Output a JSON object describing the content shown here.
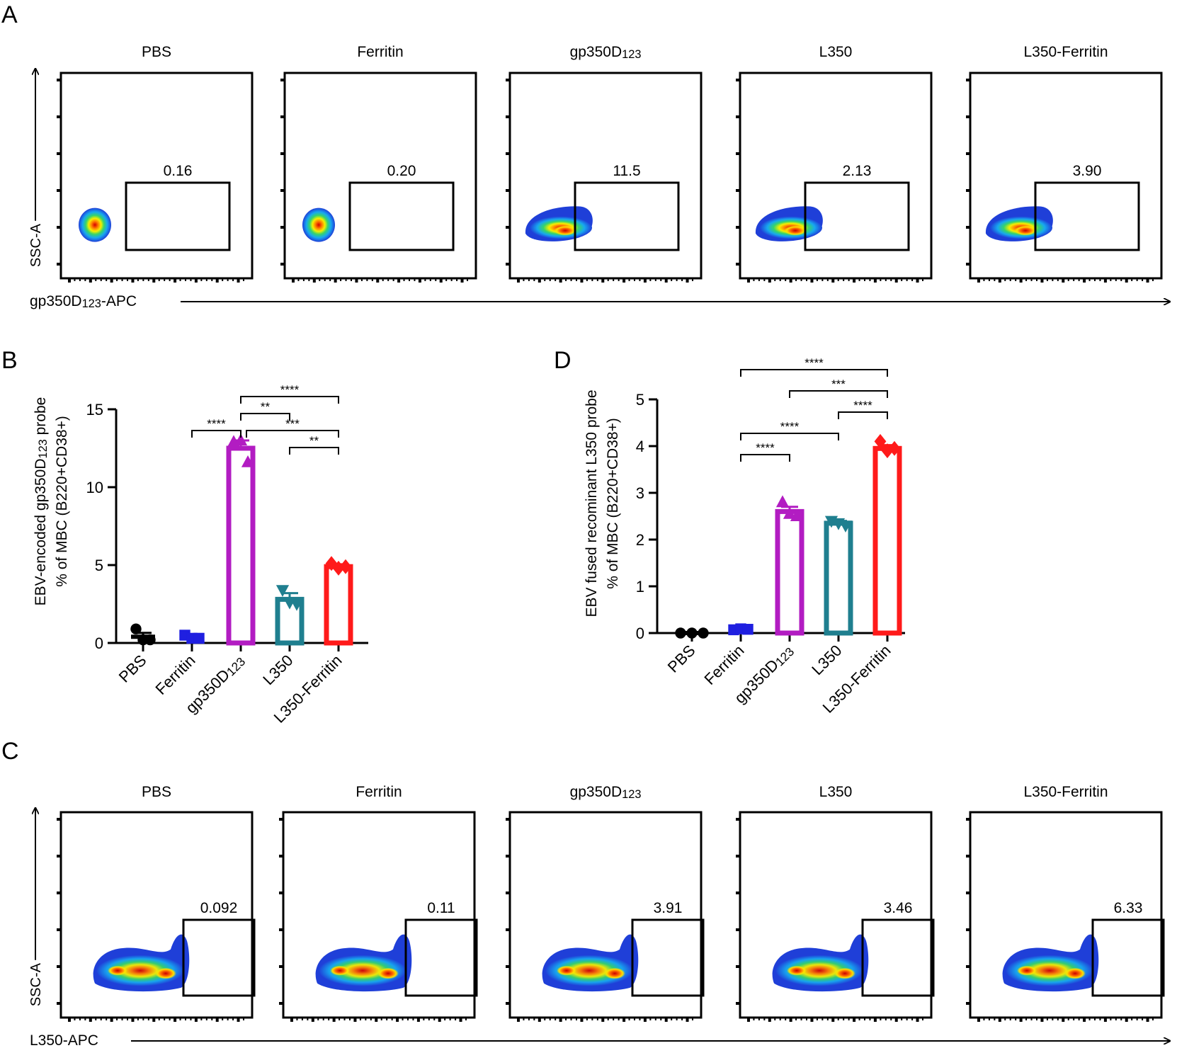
{
  "panel_letters": {
    "a": "A",
    "b": "B",
    "c": "C",
    "d": "D"
  },
  "colors": {
    "PBS": "#000000",
    "Ferritin": "#1f1fe0",
    "gp350D123": "#b21cc2",
    "L350": "#1f7f8f",
    "L350-Ferritin": "#ff1a1a"
  },
  "chart_data": [
    {
      "type": "flow-density",
      "panel": "A",
      "groups": [
        {
          "label": "PBS",
          "label_sub": "",
          "gate_value": "0.16",
          "population": "compact"
        },
        {
          "label": "Ferritin",
          "label_sub": "",
          "gate_value": "0.20",
          "population": "compact"
        },
        {
          "label": "gp350D",
          "label_sub": "123",
          "gate_value": "11.5",
          "population": "spread"
        },
        {
          "label": "L350",
          "label_sub": "",
          "gate_value": "2.13",
          "population": "spread"
        },
        {
          "label": "L350-Ferritin",
          "label_sub": "",
          "gate_value": "3.90",
          "population": "spread"
        }
      ],
      "ylabel": "SSC-A",
      "xlabel_main": "gp350D",
      "xlabel_sub": "123",
      "xlabel_tail": "-APC"
    },
    {
      "type": "bar",
      "panel": "B",
      "categories": [
        "PBS",
        "Ferritin",
        "gp350D123",
        "L350",
        "L350-Ferritin"
      ],
      "category_labels": [
        {
          "main": "PBS",
          "sub": ""
        },
        {
          "main": "Ferritin",
          "sub": ""
        },
        {
          "main": "gp350D",
          "sub": "123"
        },
        {
          "main": "L350",
          "sub": ""
        },
        {
          "main": "L350-Ferritin",
          "sub": ""
        }
      ],
      "values": [
        0.4,
        0.35,
        12.5,
        2.8,
        4.9
      ],
      "errors": [
        0.25,
        0.1,
        0.5,
        0.4,
        0.15
      ],
      "points": [
        [
          0.9,
          0.2,
          0.2
        ],
        [
          0.5,
          0.3,
          0.3
        ],
        [
          12.9,
          13.0,
          11.6
        ],
        [
          3.4,
          2.6,
          2.5
        ],
        [
          5.1,
          4.8,
          4.9
        ]
      ],
      "markers": [
        "circle",
        "square",
        "triangle-up",
        "triangle-down",
        "diamond"
      ],
      "ylabel_line1_main": "EBV-encoded gp350D",
      "ylabel_line1_sub": "123",
      "ylabel_line1_tail": " probe",
      "ylabel_line2": "% of MBC (B220+CD38+)",
      "ylim": [
        0,
        15
      ],
      "yticks": [
        0,
        5,
        10,
        15
      ],
      "significance": [
        {
          "from": 2,
          "to": 4,
          "label": "****",
          "level": 3
        },
        {
          "from": 2,
          "to": 3,
          "label": "**",
          "level": 2
        },
        {
          "from": 2,
          "to": 4,
          "label": "***",
          "level": 1,
          "split": true
        },
        {
          "from": 1,
          "to": 2,
          "label": "****",
          "level": 1
        },
        {
          "from": 3,
          "to": 4,
          "label": "**",
          "level": 0
        }
      ]
    },
    {
      "type": "flow-density",
      "panel": "C",
      "groups": [
        {
          "label": "PBS",
          "label_sub": "",
          "gate_value": "0.092",
          "population": "wide"
        },
        {
          "label": "Ferritin",
          "label_sub": "",
          "gate_value": "0.11",
          "population": "wide"
        },
        {
          "label": "gp350D",
          "label_sub": "123",
          "gate_value": "3.91",
          "population": "wide"
        },
        {
          "label": "L350",
          "label_sub": "",
          "gate_value": "3.46",
          "population": "wide"
        },
        {
          "label": "L350-Ferritin",
          "label_sub": "",
          "gate_value": "6.33",
          "population": "wide"
        }
      ],
      "ylabel": "SSC-A",
      "xlabel_main": "L350-APC",
      "xlabel_sub": "",
      "xlabel_tail": ""
    },
    {
      "type": "bar",
      "panel": "D",
      "categories": [
        "PBS",
        "Ferritin",
        "gp350D123",
        "L350",
        "L350-Ferritin"
      ],
      "category_labels": [
        {
          "main": "PBS",
          "sub": ""
        },
        {
          "main": "Ferritin",
          "sub": ""
        },
        {
          "main": "gp350D",
          "sub": "123"
        },
        {
          "main": "L350",
          "sub": ""
        },
        {
          "main": "L350-Ferritin",
          "sub": ""
        }
      ],
      "values": [
        0.0,
        0.08,
        2.6,
        2.35,
        3.95
      ],
      "errors": [
        0.0,
        0.02,
        0.1,
        0.05,
        0.07
      ],
      "points": [
        [
          0.0,
          0.0,
          0.0
        ],
        [
          0.07,
          0.09,
          0.08
        ],
        [
          2.8,
          2.55,
          2.5
        ],
        [
          2.4,
          2.35,
          2.3
        ],
        [
          4.1,
          3.9,
          3.95
        ]
      ],
      "markers": [
        "circle",
        "square",
        "triangle-up",
        "triangle-down",
        "diamond"
      ],
      "ylabel_line1_main": "EBV fused recominant L350 probe",
      "ylabel_line1_sub": "",
      "ylabel_line1_tail": "",
      "ylabel_line2": "% of MBC (B220+CD38+)",
      "ylim": [
        0,
        5
      ],
      "yticks": [
        0,
        1,
        2,
        3,
        4,
        5
      ],
      "significance": [
        {
          "from": 1,
          "to": 4,
          "label": "****",
          "level": 5
        },
        {
          "from": 2,
          "to": 4,
          "label": "***",
          "level": 4
        },
        {
          "from": 3,
          "to": 4,
          "label": "****",
          "level": 3
        },
        {
          "from": 1,
          "to": 3,
          "label": "****",
          "level": 2
        },
        {
          "from": 1,
          "to": 2,
          "label": "****",
          "level": 1
        }
      ]
    }
  ]
}
